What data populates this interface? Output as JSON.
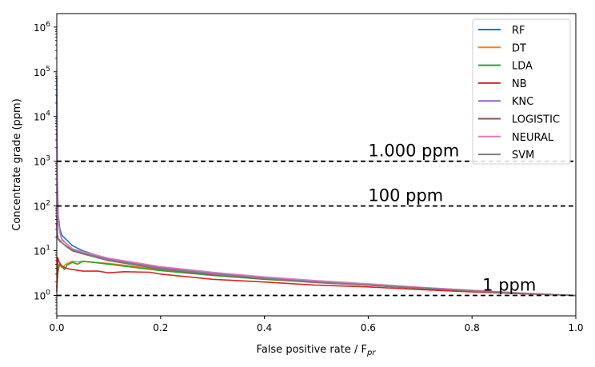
{
  "chart_data": {
    "type": "line",
    "title": "",
    "xlabel": "False positive rate / F",
    "xlabel_sub": "pr",
    "ylabel": "Concentrate grade (ppm)",
    "xlim": [
      0.0,
      1.0
    ],
    "ylim": [
      0.35,
      2000000
    ],
    "yscale": "log",
    "grid": false,
    "legend_position": "upper right",
    "x_ticks": [
      {
        "value": 0.0,
        "label": "0.0"
      },
      {
        "value": 0.2,
        "label": "0.2"
      },
      {
        "value": 0.4,
        "label": "0.4"
      },
      {
        "value": 0.6,
        "label": "0.6"
      },
      {
        "value": 0.8,
        "label": "0.8"
      },
      {
        "value": 1.0,
        "label": "1.0"
      }
    ],
    "y_ticks": [
      {
        "value": 1,
        "base": "10",
        "exp": "0"
      },
      {
        "value": 10,
        "base": "10",
        "exp": "1"
      },
      {
        "value": 100,
        "base": "10",
        "exp": "2"
      },
      {
        "value": 1000,
        "base": "10",
        "exp": "3"
      },
      {
        "value": 10000,
        "base": "10",
        "exp": "4"
      },
      {
        "value": 100000,
        "base": "10",
        "exp": "5"
      },
      {
        "value": 1000000,
        "base": "10",
        "exp": "6"
      }
    ],
    "reference_lines": [
      {
        "y": 1000,
        "label": "1.000 ppm",
        "label_x": 0.6
      },
      {
        "y": 100,
        "label": "100 ppm",
        "label_x": 0.6
      },
      {
        "y": 1,
        "label": "1 ppm",
        "label_x": 0.82
      }
    ],
    "series": [
      {
        "name": "RF",
        "color": "#1f77b4",
        "x": [
          0.0,
          0.001,
          0.003,
          0.006,
          0.01,
          0.02,
          0.03,
          0.05,
          0.1,
          0.2,
          0.3,
          0.4,
          0.5,
          0.6,
          0.7,
          0.8,
          0.9,
          1.0
        ],
        "y": [
          80000,
          500,
          60,
          30,
          22,
          17,
          13,
          10,
          6.5,
          4.0,
          3.0,
          2.4,
          2.0,
          1.7,
          1.45,
          1.25,
          1.1,
          1.0
        ]
      },
      {
        "name": "DT",
        "color": "#ff7f0e",
        "x": [
          0.0,
          0.002,
          0.005,
          0.01,
          0.02,
          0.03,
          0.04,
          0.05,
          0.07,
          0.1,
          0.2,
          0.3,
          0.4,
          0.5,
          0.6,
          0.7,
          0.8,
          0.9,
          1.0
        ],
        "y": [
          1.5,
          3.0,
          4.8,
          4.2,
          5.2,
          5.8,
          5.6,
          5.8,
          5.5,
          5.2,
          3.8,
          3.0,
          2.5,
          2.1,
          1.8,
          1.5,
          1.3,
          1.12,
          1.0
        ]
      },
      {
        "name": "LDA",
        "color": "#2ca02c",
        "x": [
          0.0,
          0.002,
          0.005,
          0.01,
          0.015,
          0.02,
          0.03,
          0.04,
          0.05,
          0.07,
          0.1,
          0.2,
          0.3,
          0.4,
          0.5,
          0.6,
          0.7,
          0.8,
          0.9,
          1.0
        ],
        "y": [
          1.5,
          3.5,
          5.0,
          4.5,
          3.8,
          4.8,
          5.5,
          5.0,
          5.8,
          5.5,
          5.0,
          3.6,
          2.8,
          2.3,
          1.95,
          1.7,
          1.45,
          1.25,
          1.1,
          1.0
        ]
      },
      {
        "name": "NB",
        "color": "#d62728",
        "x": [
          0.0,
          0.002,
          0.005,
          0.01,
          0.02,
          0.03,
          0.05,
          0.08,
          0.1,
          0.13,
          0.18,
          0.2,
          0.3,
          0.4,
          0.5,
          0.6,
          0.7,
          0.8,
          0.9,
          1.0
        ],
        "y": [
          1.2,
          7.0,
          5.5,
          4.5,
          4.0,
          3.8,
          3.5,
          3.5,
          3.2,
          3.4,
          3.3,
          3.0,
          2.3,
          2.0,
          1.7,
          1.55,
          1.35,
          1.2,
          1.08,
          1.0
        ]
      },
      {
        "name": "KNC",
        "color": "#9467bd",
        "x": [
          0.0,
          0.001,
          0.003,
          0.006,
          0.01,
          0.02,
          0.03,
          0.05,
          0.1,
          0.2,
          0.3,
          0.4,
          0.5,
          0.6,
          0.7,
          0.8,
          0.9,
          1.0
        ],
        "y": [
          30000,
          300,
          50,
          25,
          18,
          14,
          11,
          9,
          6.5,
          4.2,
          3.2,
          2.5,
          2.1,
          1.8,
          1.5,
          1.28,
          1.12,
          1.0
        ]
      },
      {
        "name": "LOGISTIC",
        "color": "#8c564b",
        "x": [
          0.0,
          0.001,
          0.003,
          0.006,
          0.01,
          0.02,
          0.03,
          0.05,
          0.1,
          0.2,
          0.3,
          0.4,
          0.5,
          0.6,
          0.7,
          0.8,
          0.9,
          1.0
        ],
        "y": [
          40,
          22,
          18,
          16,
          15,
          12,
          10,
          8.5,
          6.0,
          3.9,
          2.9,
          2.35,
          1.95,
          1.7,
          1.45,
          1.25,
          1.1,
          1.0
        ]
      },
      {
        "name": "NEURAL",
        "color": "#e377c2",
        "x": [
          0.0,
          0.001,
          0.003,
          0.006,
          0.01,
          0.02,
          0.03,
          0.05,
          0.1,
          0.2,
          0.3,
          0.4,
          0.5,
          0.6,
          0.7,
          0.8,
          0.9,
          1.0
        ],
        "y": [
          5000,
          200,
          40,
          25,
          17,
          14,
          11,
          9.5,
          6.8,
          4.4,
          3.3,
          2.6,
          2.15,
          1.82,
          1.52,
          1.3,
          1.13,
          1.0
        ]
      },
      {
        "name": "SVM",
        "color": "#7f7f7f",
        "x": [
          0.0,
          0.001,
          0.003,
          0.006,
          0.01,
          0.02,
          0.03,
          0.05,
          0.1,
          0.2,
          0.3,
          0.4,
          0.5,
          0.6,
          0.7,
          0.8,
          0.9,
          1.0
        ],
        "y": [
          60,
          25,
          19,
          17,
          15,
          12.5,
          10.5,
          8.8,
          6.2,
          4.0,
          3.0,
          2.4,
          2.0,
          1.72,
          1.47,
          1.27,
          1.11,
          1.0
        ]
      }
    ]
  }
}
